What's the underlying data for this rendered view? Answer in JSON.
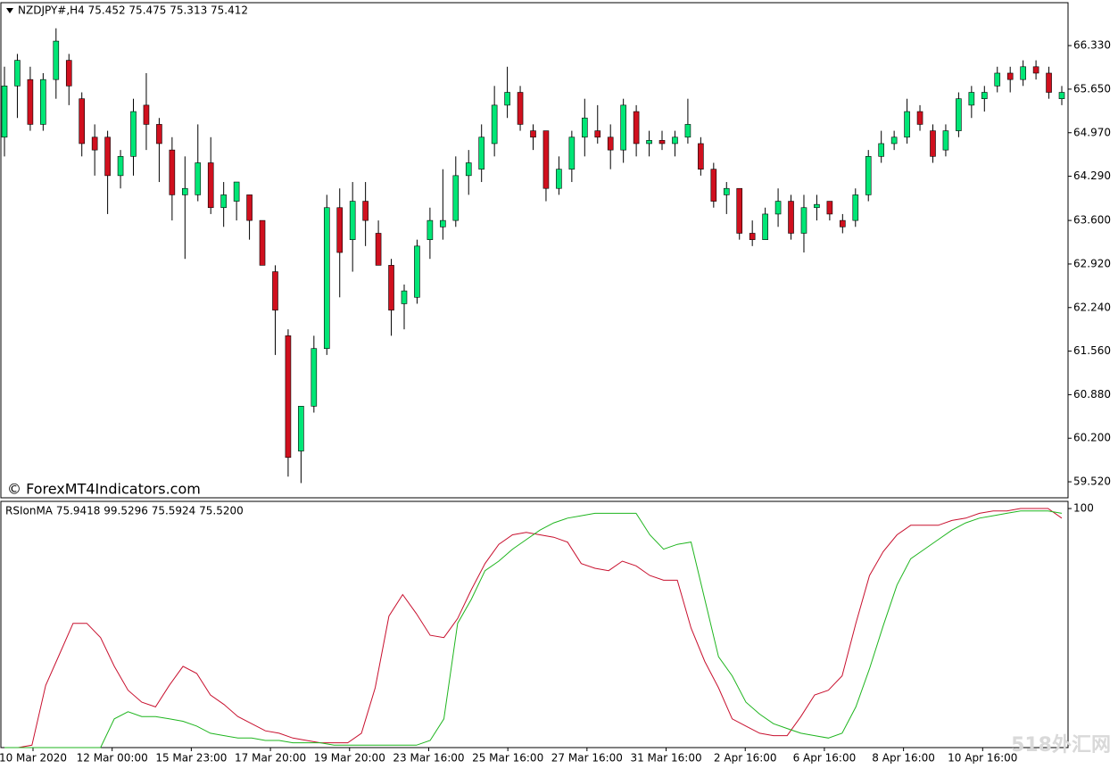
{
  "chart_data": [
    {
      "type": "candlestick",
      "title": "NZDJPY#,H4  75.452 75.475 75.313 75.412",
      "annotation": "© ForexMT4Indicators.com",
      "up_color": "#00e676",
      "down_color": "#d0101e",
      "open": [
        64.9,
        65.7,
        65.8,
        65.1,
        65.8,
        66.1,
        65.5,
        64.9,
        64.9,
        64.3,
        64.6,
        65.4,
        65.1,
        64.7,
        64.0,
        64.0,
        64.5,
        63.8,
        63.9,
        64.0,
        63.6,
        62.8,
        61.8,
        60.0,
        60.7,
        61.6,
        63.8,
        63.3,
        63.9,
        63.4,
        62.9,
        62.3,
        62.4,
        63.3,
        63.5,
        63.6,
        64.3,
        64.4,
        64.8,
        65.4,
        65.6,
        65.0,
        65.0,
        64.1,
        64.4,
        64.9,
        65.0,
        64.9,
        64.7,
        65.3,
        64.8,
        64.85,
        64.8,
        64.9,
        64.8,
        64.4,
        64.0,
        64.1,
        63.4,
        63.3,
        63.7,
        63.9,
        63.4,
        63.8,
        63.9,
        63.6,
        63.6,
        64.0,
        64.6,
        64.8,
        64.9,
        65.3,
        65.0,
        64.7,
        65.0,
        65.4,
        65.5,
        65.7,
        65.9,
        65.8,
        66.0,
        65.9,
        65.5
      ],
      "high": [
        66.0,
        66.2,
        66.0,
        65.9,
        66.6,
        66.2,
        65.6,
        65.1,
        65.0,
        64.7,
        65.5,
        65.9,
        65.2,
        64.9,
        64.6,
        65.1,
        64.9,
        64.2,
        64.2,
        64.0,
        63.6,
        62.9,
        61.9,
        60.7,
        61.8,
        64.0,
        64.1,
        64.2,
        64.2,
        63.6,
        63.0,
        62.6,
        63.3,
        63.8,
        64.4,
        64.6,
        64.7,
        65.1,
        65.7,
        66.0,
        65.7,
        65.1,
        65.0,
        64.6,
        65.0,
        65.5,
        65.4,
        65.1,
        65.5,
        65.4,
        65.0,
        65.0,
        65.0,
        65.5,
        64.9,
        64.5,
        64.2,
        64.1,
        63.6,
        63.8,
        64.1,
        64.0,
        64.0,
        64.0,
        63.9,
        63.7,
        64.1,
        64.7,
        65.0,
        65.0,
        65.5,
        65.4,
        65.1,
        65.1,
        65.6,
        65.7,
        65.7,
        66.0,
        66.0,
        66.1,
        66.1,
        66.0,
        65.7
      ],
      "low": [
        64.6,
        65.2,
        65.0,
        65.0,
        65.5,
        65.4,
        64.6,
        64.3,
        63.7,
        64.1,
        64.3,
        64.7,
        64.2,
        63.6,
        63.0,
        63.9,
        63.7,
        63.5,
        63.6,
        63.3,
        62.9,
        61.5,
        59.6,
        59.5,
        60.6,
        61.5,
        62.4,
        62.8,
        63.2,
        62.9,
        61.8,
        61.9,
        62.3,
        63.0,
        63.3,
        63.5,
        64.0,
        64.2,
        64.6,
        65.2,
        65.0,
        64.7,
        63.9,
        64.0,
        64.2,
        64.6,
        64.8,
        64.4,
        64.5,
        64.6,
        64.6,
        64.7,
        64.6,
        64.8,
        64.3,
        63.8,
        63.7,
        63.3,
        63.2,
        63.3,
        63.5,
        63.3,
        63.1,
        63.6,
        63.6,
        63.4,
        63.5,
        63.9,
        64.5,
        64.7,
        64.8,
        65.0,
        64.5,
        64.6,
        64.9,
        65.2,
        65.3,
        65.6,
        65.6,
        65.7,
        65.8,
        65.5,
        65.4
      ],
      "close": [
        65.7,
        66.1,
        65.1,
        65.8,
        66.4,
        65.7,
        64.8,
        64.7,
        64.3,
        64.6,
        65.3,
        65.1,
        64.8,
        64.0,
        64.1,
        64.5,
        63.8,
        64.0,
        64.2,
        63.6,
        62.9,
        62.2,
        59.9,
        60.7,
        61.6,
        63.8,
        63.1,
        63.9,
        63.6,
        62.9,
        62.2,
        62.5,
        63.2,
        63.6,
        63.6,
        64.3,
        64.5,
        64.9,
        65.4,
        65.6,
        65.1,
        64.9,
        64.1,
        64.4,
        64.9,
        65.2,
        64.9,
        64.7,
        65.4,
        64.8,
        64.85,
        64.8,
        64.9,
        65.1,
        64.4,
        63.9,
        64.1,
        63.4,
        63.3,
        63.7,
        63.9,
        63.4,
        63.8,
        63.85,
        63.7,
        63.5,
        64.0,
        64.6,
        64.8,
        64.9,
        65.3,
        65.1,
        64.6,
        65.0,
        65.5,
        65.6,
        65.6,
        65.9,
        65.8,
        66.0,
        65.9,
        65.6,
        65.6
      ],
      "ylim": [
        59.27,
        67.0
      ],
      "yticks": [
        {
          "value": 66.33,
          "label": "66.330"
        },
        {
          "value": 65.65,
          "label": "65.650"
        },
        {
          "value": 64.97,
          "label": "64.970"
        },
        {
          "value": 64.29,
          "label": "64.290"
        },
        {
          "value": 63.6,
          "label": "63.600"
        },
        {
          "value": 62.92,
          "label": "62.920"
        },
        {
          "value": 62.24,
          "label": "62.240"
        },
        {
          "value": 61.56,
          "label": "61.560"
        },
        {
          "value": 60.88,
          "label": "60.880"
        },
        {
          "value": 60.2,
          "label": "60.200"
        },
        {
          "value": 59.52,
          "label": "59.520"
        }
      ]
    },
    {
      "type": "line",
      "title": "RSIonMA 75.9418 99.5296 75.5924 75.5200",
      "annotation": "518外汇网",
      "time_labels": [
        "10 Mar 2020",
        "12 Mar 00:00",
        "15 Mar 23:00",
        "17 Mar 20:00",
        "19 Mar 20:00",
        "23 Mar 16:00",
        "25 Mar 16:00",
        "27 Mar 16:00",
        "31 Mar 16:00",
        "2 Apr 16:00",
        "6 Apr 16:00",
        "8 Apr 16:00",
        "10 Apr 16:00"
      ],
      "series": [
        {
          "color": "#c8102e",
          "values": [
            0,
            0,
            1,
            26,
            39,
            52,
            52,
            46,
            34,
            24,
            19,
            17,
            26,
            34,
            31,
            22,
            18,
            13,
            10,
            7,
            6,
            4,
            3,
            2,
            2,
            2,
            6,
            25,
            55,
            64,
            56,
            47,
            46,
            54,
            66,
            77,
            85,
            89,
            90,
            89,
            88,
            86,
            77,
            75,
            74,
            78,
            76,
            72,
            70,
            70,
            50,
            36,
            25,
            12,
            9,
            6,
            5,
            5,
            13,
            22,
            24,
            30,
            52,
            72,
            82,
            89,
            93,
            93,
            93,
            95,
            96,
            98,
            99,
            99,
            100,
            100,
            100,
            96
          ]
        },
        {
          "color": "#1fb51f",
          "values": [
            0,
            0,
            0,
            0,
            0,
            0,
            0,
            0,
            12,
            15,
            13,
            13,
            12,
            11,
            9,
            6,
            5,
            4,
            4,
            3,
            3,
            2,
            2,
            2,
            1,
            1,
            1,
            1,
            1,
            1,
            1,
            3,
            12,
            52,
            62,
            74,
            78,
            83,
            87,
            91,
            94,
            96,
            97,
            98,
            98,
            98,
            98,
            89,
            83,
            85,
            86,
            62,
            38,
            30,
            19,
            14,
            10,
            8,
            6,
            5,
            4,
            6,
            17,
            33,
            51,
            68,
            79,
            83,
            87,
            91,
            94,
            96,
            97,
            98,
            99,
            99,
            99,
            98
          ]
        }
      ],
      "ylim": [
        0,
        103
      ],
      "yticks": [
        100
      ]
    }
  ]
}
